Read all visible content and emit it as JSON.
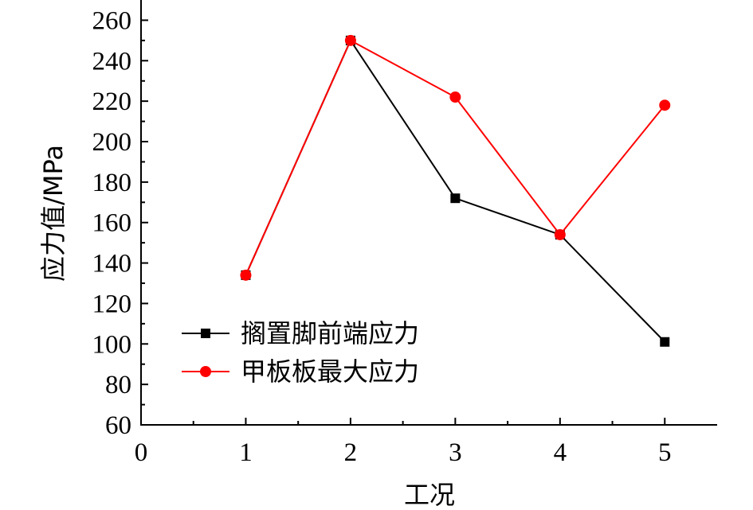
{
  "chart_data": {
    "type": "line",
    "title": "",
    "xlabel": "工况",
    "ylabel": "应力值/MPa",
    "xlim": [
      0,
      5.5
    ],
    "ylim": [
      60,
      270
    ],
    "x_ticks": [
      0,
      1,
      2,
      3,
      4,
      5
    ],
    "y_ticks": [
      60,
      80,
      100,
      120,
      140,
      160,
      180,
      200,
      220,
      240,
      260
    ],
    "grid": false,
    "legend_position": "bottom-left",
    "series": [
      {
        "name": "搁置脚前端应力",
        "color": "#000000",
        "marker": "square",
        "x": [
          1,
          2,
          3,
          4,
          5
        ],
        "values": [
          134,
          250,
          172,
          154,
          101
        ]
      },
      {
        "name": "甲板板最大应力",
        "color": "#ff0000",
        "marker": "circle",
        "x": [
          1,
          2,
          3,
          4,
          5
        ],
        "values": [
          134,
          250,
          222,
          154,
          218
        ]
      }
    ]
  }
}
